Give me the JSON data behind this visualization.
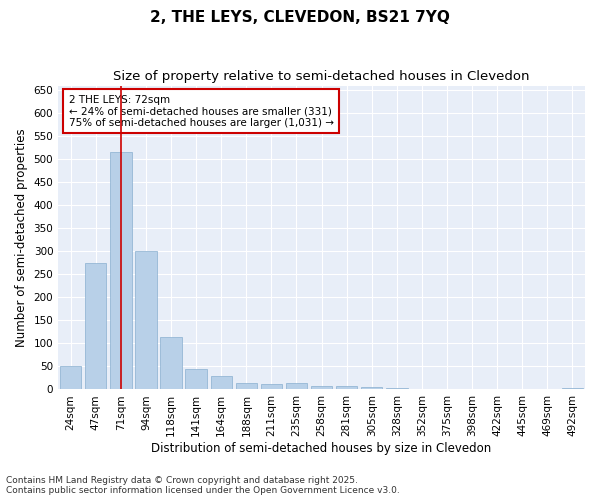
{
  "title": "2, THE LEYS, CLEVEDON, BS21 7YQ",
  "subtitle": "Size of property relative to semi-detached houses in Clevedon",
  "xlabel": "Distribution of semi-detached houses by size in Clevedon",
  "ylabel": "Number of semi-detached properties",
  "categories": [
    "24sqm",
    "47sqm",
    "71sqm",
    "94sqm",
    "118sqm",
    "141sqm",
    "164sqm",
    "188sqm",
    "211sqm",
    "235sqm",
    "258sqm",
    "281sqm",
    "305sqm",
    "328sqm",
    "352sqm",
    "375sqm",
    "398sqm",
    "422sqm",
    "445sqm",
    "469sqm",
    "492sqm"
  ],
  "values": [
    50,
    275,
    515,
    300,
    115,
    45,
    30,
    15,
    12,
    13,
    8,
    8,
    5,
    4,
    2,
    1,
    0,
    0,
    0,
    0,
    3
  ],
  "bar_color": "#b8d0e8",
  "bar_edge_color": "#8ab0d0",
  "highlight_bar_index": 2,
  "highlight_line_color": "#cc0000",
  "annotation_text": "2 THE LEYS: 72sqm\n← 24% of semi-detached houses are smaller (331)\n75% of semi-detached houses are larger (1,031) →",
  "annotation_box_color": "#ffffff",
  "annotation_box_edge_color": "#cc0000",
  "ylim": [
    0,
    660
  ],
  "yticks": [
    0,
    50,
    100,
    150,
    200,
    250,
    300,
    350,
    400,
    450,
    500,
    550,
    600,
    650
  ],
  "footer_line1": "Contains HM Land Registry data © Crown copyright and database right 2025.",
  "footer_line2": "Contains public sector information licensed under the Open Government Licence v3.0.",
  "background_color": "#ffffff",
  "plot_background_color": "#e8eef8",
  "title_fontsize": 11,
  "subtitle_fontsize": 9.5,
  "axis_label_fontsize": 8.5,
  "tick_fontsize": 7.5,
  "annotation_fontsize": 7.5,
  "footer_fontsize": 6.5
}
